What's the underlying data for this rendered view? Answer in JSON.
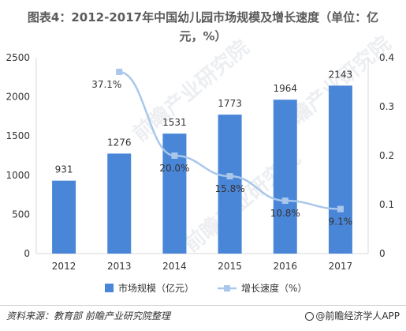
{
  "header": {
    "title_line1": "图表4：2012-2017年中国幼儿园市场规模及增长速度（单位：亿",
    "title_line2": "元，%）"
  },
  "footer": {
    "source": "资料来源：教育部 前瞻产业研究院整理",
    "brand": "@前瞻经济学人APP"
  },
  "watermark": "前瞻产业研究院",
  "chart_data": {
    "type": "bar",
    "categories": [
      "2012",
      "2013",
      "2014",
      "2015",
      "2016",
      "2017"
    ],
    "series": [
      {
        "name": "市场规模（亿元）",
        "type": "bar",
        "axis": "left",
        "values": [
          931,
          1276,
          1531,
          1773,
          1964,
          2143
        ],
        "labels": [
          "931",
          "1276",
          "1531",
          "1773",
          "1964",
          "2143"
        ]
      },
      {
        "name": "增长速度（%）",
        "type": "line",
        "axis": "right",
        "values": [
          null,
          0.371,
          0.2,
          0.158,
          0.108,
          0.091
        ],
        "labels": [
          "",
          "37.1%",
          "20.0%",
          "15.8%",
          "10.8%",
          "9.1%"
        ]
      }
    ],
    "ylim_left": [
      0,
      2500
    ],
    "yticks_left": [
      "0",
      "500",
      "1000",
      "1500",
      "2000",
      "2500"
    ],
    "ylim_right": [
      0,
      0.4
    ],
    "yticks_right": [
      "0",
      "0.1",
      "0.2",
      "0.3",
      "0.4"
    ],
    "grid": false,
    "legend": "bottom",
    "colors": {
      "bar": "#4a86d8",
      "line": "#a9c7ea",
      "marker": "#a9c7ea"
    }
  }
}
